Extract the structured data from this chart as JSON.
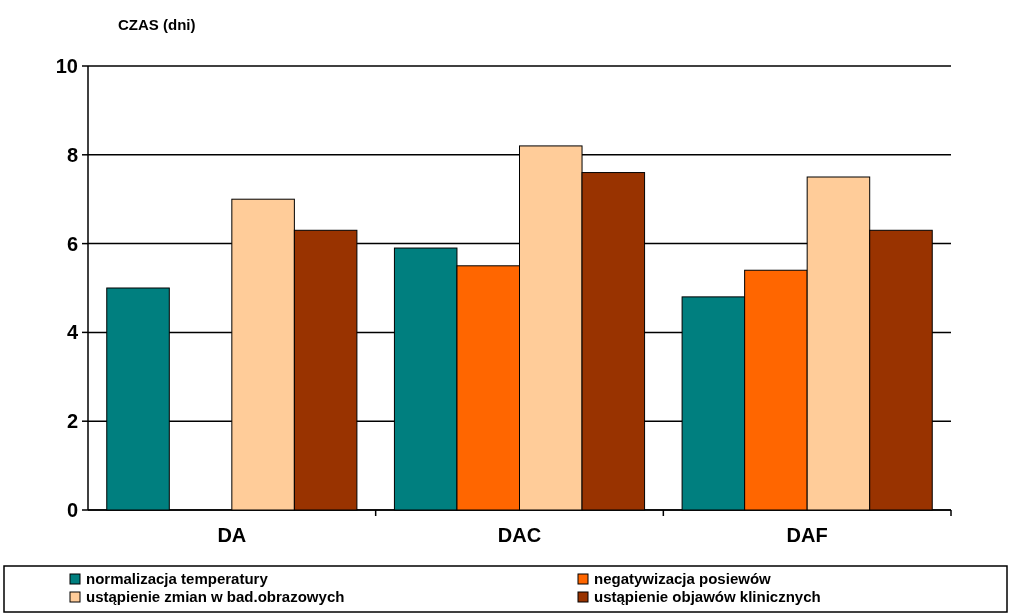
{
  "chart_data": {
    "type": "bar",
    "ylabel": "CZAS  (dni)",
    "categories": [
      "DA",
      "DAC",
      "DAF"
    ],
    "series": [
      {
        "name": "normalizacja temperatury",
        "color": "#007f7f",
        "values": [
          5.0,
          5.9,
          4.8
        ]
      },
      {
        "name": "negatywizacja posiewów",
        "color": "#ff6600",
        "values": [
          null,
          5.5,
          5.4
        ]
      },
      {
        "name": "ustąpienie zmian w bad.obrazowych",
        "color": "#ffcc99",
        "values": [
          7.0,
          8.2,
          7.5
        ]
      },
      {
        "name": "ustąpienie objawów klinicznych",
        "color": "#993300",
        "values": [
          6.3,
          7.6,
          6.3
        ]
      }
    ],
    "ylim": [
      0,
      10
    ],
    "yticks": [
      0,
      2,
      4,
      6,
      8,
      10
    ],
    "grid": "y",
    "legend": "bottom"
  }
}
